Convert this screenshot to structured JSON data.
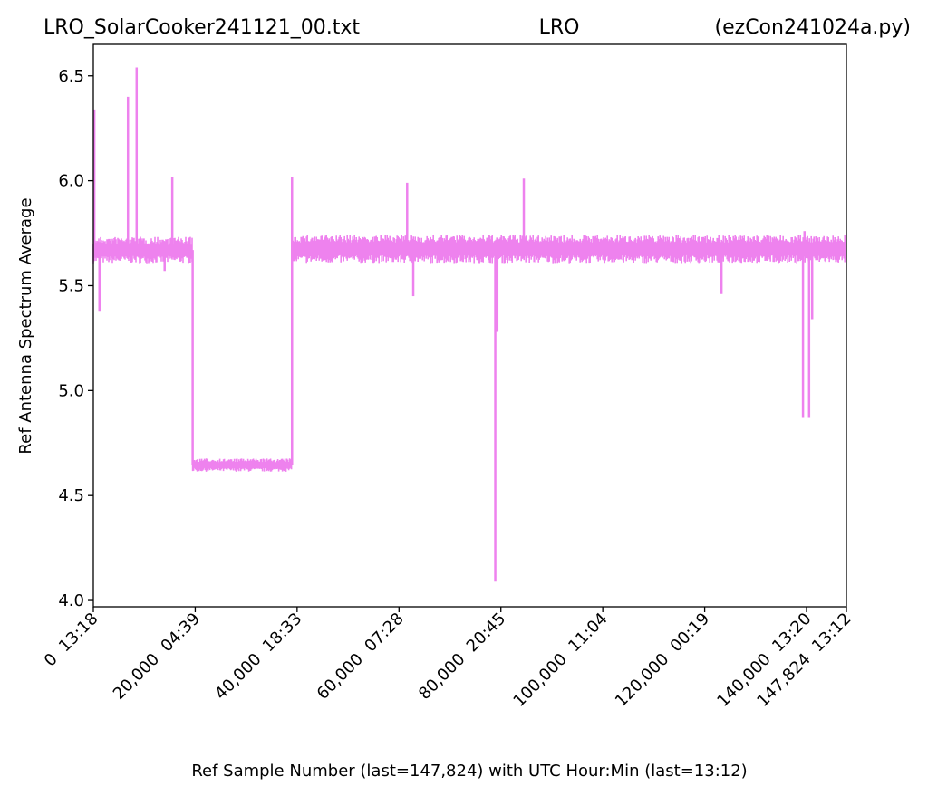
{
  "header": {
    "filename": "LRO_SolarCooker241121_00.txt",
    "station": "LRO",
    "program": "(ezCon241024a.py)"
  },
  "chart_data": {
    "type": "line",
    "title": "LRO_SolarCooker241121_00.txt",
    "xlabel": "Ref Sample Number (last=147,824) with UTC Hour:Min (last=13:12)",
    "ylabel": "Ref Antenna Spectrum Average",
    "xlim": [
      0,
      147824
    ],
    "ylim": [
      3.97,
      6.65
    ],
    "grid": false,
    "line_color": "#ee82ee",
    "yticks": [
      {
        "value": 4.0,
        "label": "4.0"
      },
      {
        "value": 4.5,
        "label": "4.5"
      },
      {
        "value": 5.0,
        "label": "5.0"
      },
      {
        "value": 5.5,
        "label": "5.5"
      },
      {
        "value": 6.0,
        "label": "6.0"
      },
      {
        "value": 6.5,
        "label": "6.5"
      }
    ],
    "xticks": [
      {
        "value": 0,
        "label": "0  13:18"
      },
      {
        "value": 20000,
        "label": "20,000  04:39"
      },
      {
        "value": 40000,
        "label": "40,000  18:33"
      },
      {
        "value": 60000,
        "label": "60,000  07:28"
      },
      {
        "value": 80000,
        "label": "80,000  20:45"
      },
      {
        "value": 100000,
        "label": "100,000  11:04"
      },
      {
        "value": 120000,
        "label": "120,000  00:19"
      },
      {
        "value": 140000,
        "label": "140,000  13:20"
      },
      {
        "value": 147824,
        "label": "147,824  13:12"
      }
    ],
    "series": [
      {
        "segments": [
          {
            "x_start": 0,
            "x_end": 19500,
            "low": 5.6,
            "high": 5.74
          },
          {
            "x_start": 19500,
            "x_end": 39000,
            "low": 4.61,
            "high": 4.68
          },
          {
            "x_start": 39000,
            "x_end": 147824,
            "low": 5.6,
            "high": 5.75
          }
        ],
        "spikes": [
          {
            "x": 200,
            "y": 6.34
          },
          {
            "x": 1200,
            "y": 5.38
          },
          {
            "x": 6800,
            "y": 6.4
          },
          {
            "x": 8500,
            "y": 6.54
          },
          {
            "x": 14000,
            "y": 5.57
          },
          {
            "x": 15500,
            "y": 6.02
          },
          {
            "x": 39000,
            "y": 6.02
          },
          {
            "x": 61600,
            "y": 5.99
          },
          {
            "x": 62800,
            "y": 5.45
          },
          {
            "x": 78900,
            "y": 4.09
          },
          {
            "x": 79300,
            "y": 5.28
          },
          {
            "x": 84500,
            "y": 6.01
          },
          {
            "x": 123300,
            "y": 5.46
          },
          {
            "x": 139300,
            "y": 4.87
          },
          {
            "x": 140500,
            "y": 4.87
          },
          {
            "x": 141100,
            "y": 5.34
          },
          {
            "x": 139600,
            "y": 5.76
          }
        ]
      }
    ]
  }
}
